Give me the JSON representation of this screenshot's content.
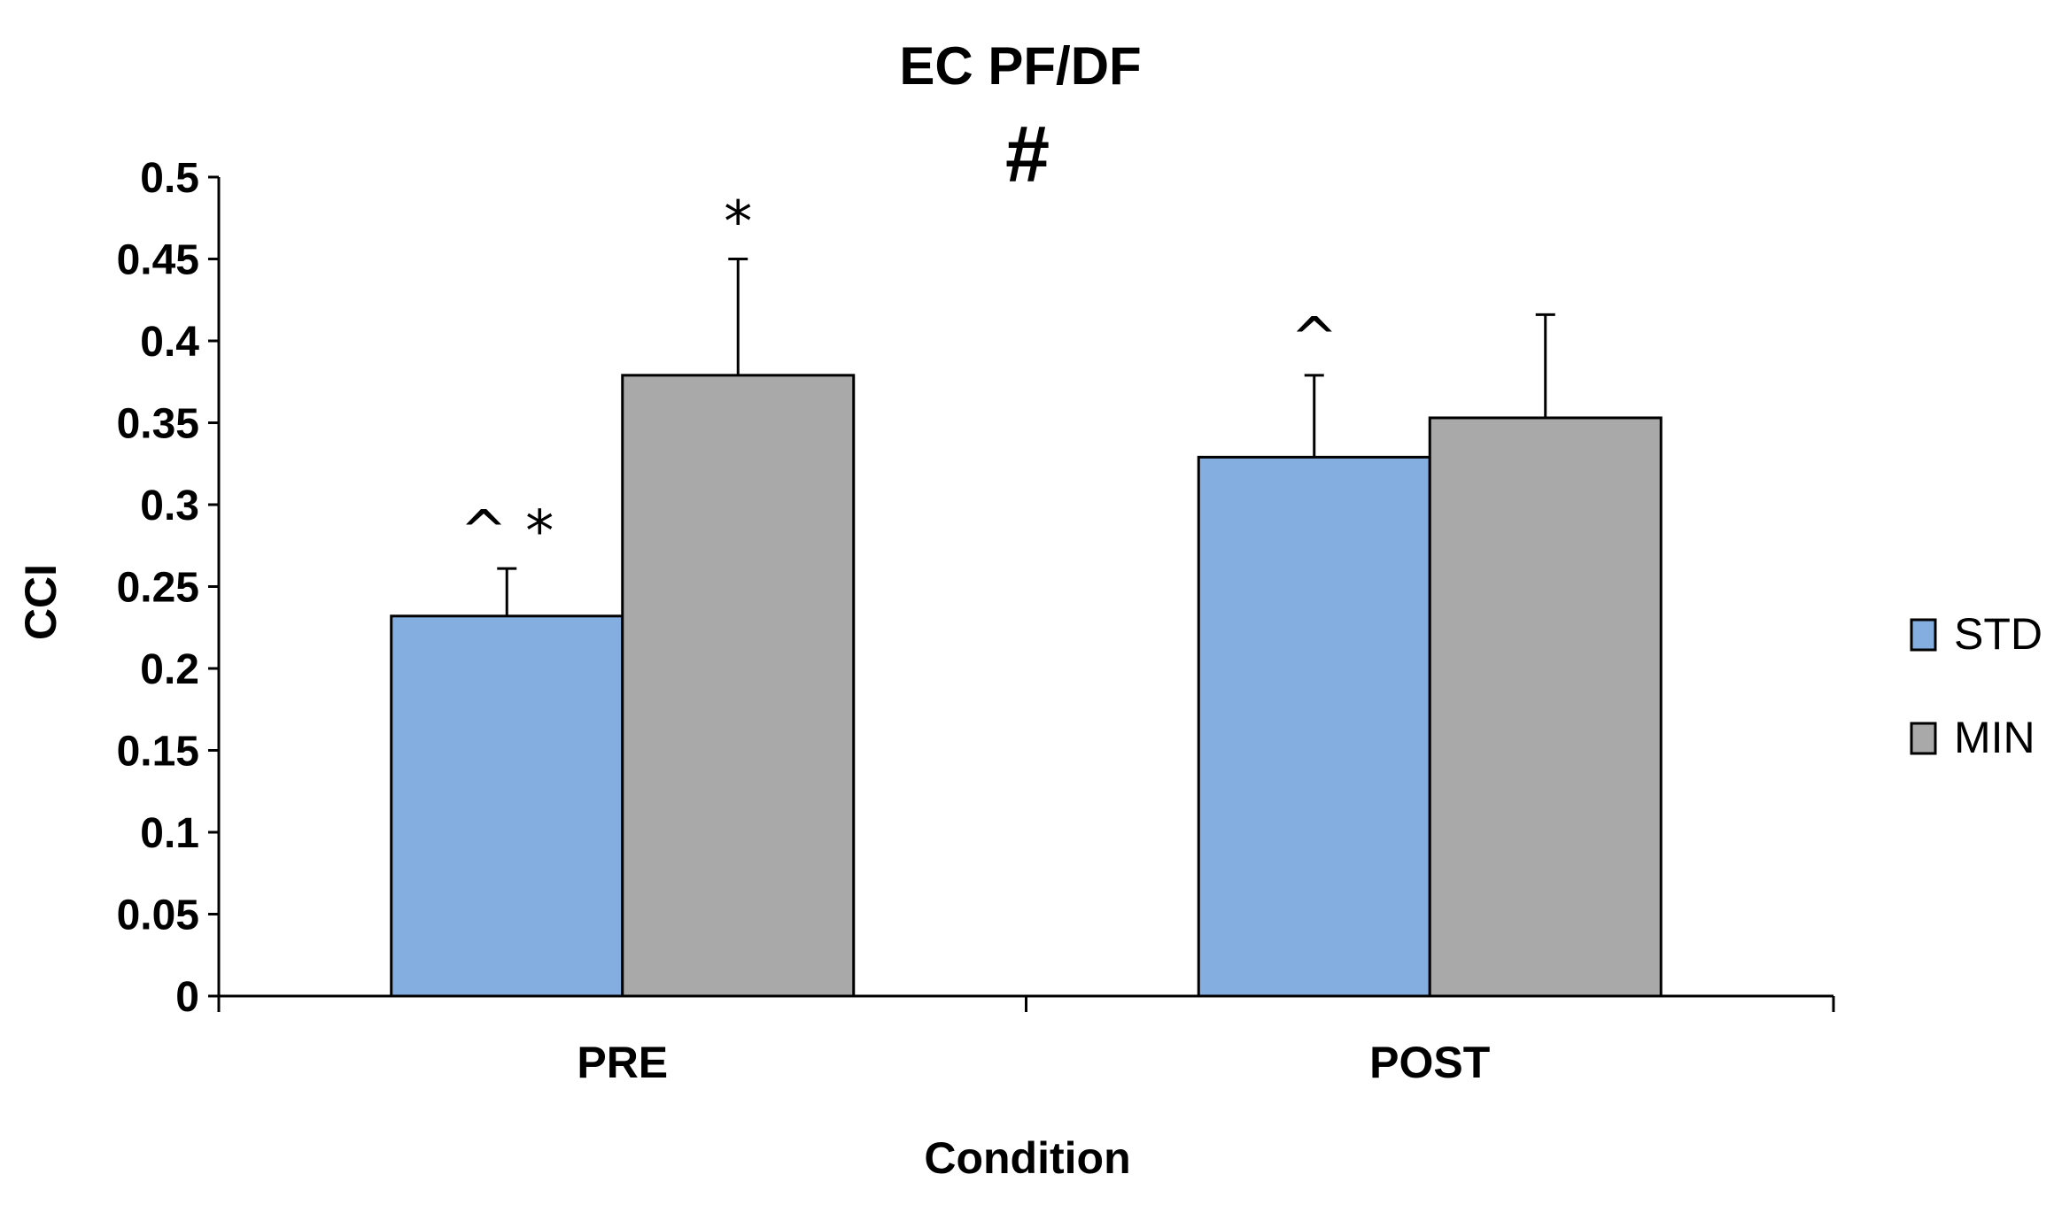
{
  "chart_data": {
    "type": "bar",
    "title": "EC PF/DF",
    "subtitle_mark": "#",
    "xlabel": "Condition",
    "ylabel": "CCI",
    "ylim": [
      0,
      0.5
    ],
    "yticks": [
      "0",
      "0.05",
      "0.1",
      "0.15",
      "0.2",
      "0.25",
      "0.3",
      "0.35",
      "0.4",
      "0.45",
      "0.5"
    ],
    "categories": [
      "PRE",
      "POST"
    ],
    "series": [
      {
        "name": "STD",
        "color": "#84aee0",
        "values": [
          0.232,
          0.329
        ],
        "errors": [
          0.029,
          0.05
        ],
        "annotations": [
          "^ *",
          "^"
        ]
      },
      {
        "name": "MIN",
        "color": "#a9a9a9",
        "values": [
          0.379,
          0.353
        ],
        "errors": [
          0.071,
          0.063
        ],
        "annotations": [
          "*",
          ""
        ]
      }
    ],
    "legend": {
      "position": "right",
      "items": [
        "STD",
        "MIN"
      ]
    }
  }
}
